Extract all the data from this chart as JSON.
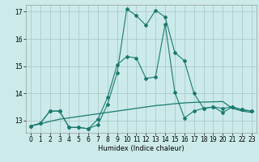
{
  "xlabel": "Humidex (Indice chaleur)",
  "background_color": "#cceaea",
  "grid_color": "#aacccc",
  "line_color": "#1a7a6e",
  "xlim": [
    -0.5,
    23.5
  ],
  "ylim": [
    12.55,
    17.25
  ],
  "yticks": [
    13,
    14,
    15,
    16,
    17
  ],
  "xticks": [
    0,
    1,
    2,
    3,
    4,
    5,
    6,
    7,
    8,
    9,
    10,
    11,
    12,
    13,
    14,
    15,
    16,
    17,
    18,
    19,
    20,
    21,
    22,
    23
  ],
  "x": [
    0,
    1,
    2,
    3,
    4,
    5,
    6,
    7,
    8,
    9,
    10,
    11,
    12,
    13,
    14,
    15,
    16,
    17,
    18,
    19,
    20,
    21,
    22,
    23
  ],
  "y_peak": [
    12.8,
    12.9,
    13.35,
    13.35,
    12.75,
    12.75,
    12.7,
    12.85,
    13.6,
    14.75,
    17.1,
    16.85,
    16.5,
    17.05,
    16.8,
    15.5,
    15.2,
    14.0,
    13.45,
    13.5,
    13.45,
    13.5,
    13.4,
    13.35
  ],
  "y_mid": [
    12.8,
    12.9,
    13.35,
    13.35,
    12.75,
    12.75,
    12.7,
    13.05,
    13.85,
    15.05,
    15.35,
    15.3,
    14.55,
    14.6,
    16.55,
    14.05,
    13.1,
    13.35,
    13.45,
    13.5,
    13.3,
    13.5,
    13.4,
    13.35
  ],
  "y_flat": [
    12.8,
    12.88,
    12.97,
    13.05,
    13.1,
    13.15,
    13.2,
    13.25,
    13.3,
    13.35,
    13.4,
    13.45,
    13.5,
    13.55,
    13.58,
    13.62,
    13.65,
    13.67,
    13.68,
    13.69,
    13.7,
    13.45,
    13.35,
    13.3
  ]
}
